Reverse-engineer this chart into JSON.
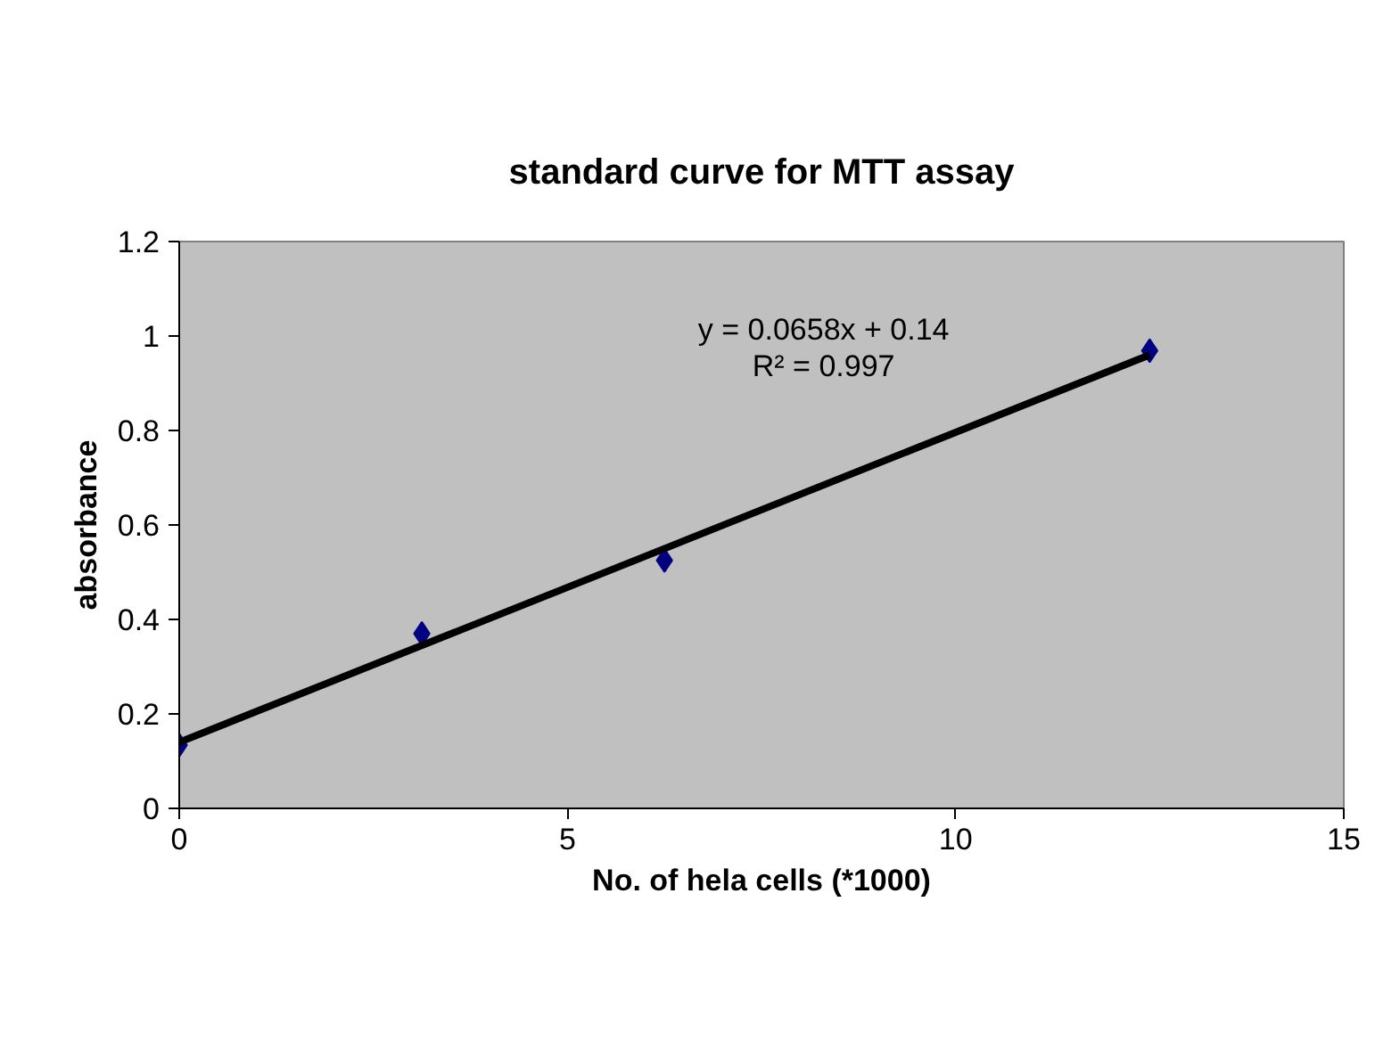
{
  "chart_data": {
    "type": "scatter",
    "title": "standard curve for MTT assay",
    "xlabel": "No. of hela cells (*1000)",
    "ylabel": "absorbance",
    "x": [
      0,
      3.125,
      6.25,
      12.5
    ],
    "series": [
      {
        "color": "#000080",
        "values": [
          0.134,
          0.37,
          0.525,
          0.969
        ],
        "marker": "diamond"
      },
      {
        "type": "line",
        "color": "#000000",
        "x": [
          0,
          12.5
        ],
        "values": [
          0.14,
          0.96
        ]
      }
    ],
    "annotations": [
      "y = 0.0658x + 0.14\nR² = 0.997"
    ],
    "xlim": [
      0,
      15
    ],
    "xticks": [
      0,
      5,
      10,
      15
    ],
    "ylim": [
      0,
      1.2
    ],
    "yticks": [
      0,
      0.2,
      0.4,
      0.6,
      0.8,
      1,
      1.2
    ],
    "grid": false
  }
}
